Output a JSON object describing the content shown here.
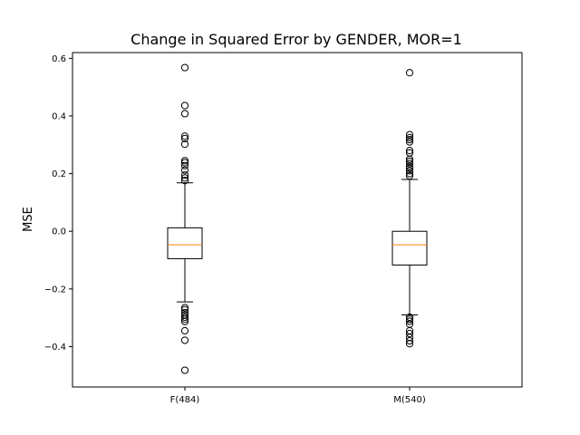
{
  "chart_data": {
    "type": "boxplot",
    "title": "Change in Squared Error by GENDER, MOR=1",
    "xlabel": "",
    "ylabel": "MSE",
    "ylim": [
      -0.54,
      0.62
    ],
    "yticks": [
      -0.4,
      -0.2,
      0.0,
      0.2,
      0.4,
      0.6
    ],
    "ytick_labels": [
      "−0.4",
      "−0.2",
      "0.0",
      "0.2",
      "0.4",
      "0.6"
    ],
    "grid": false,
    "colors": {
      "box": "#000000",
      "median": "#ff7f0e",
      "outlier": "#000000"
    },
    "categories": [
      "F(484)",
      "M(540)"
    ],
    "boxes": [
      {
        "label": "F(484)",
        "whisker_low": -0.245,
        "q1": -0.095,
        "median": -0.047,
        "q3": 0.012,
        "whisker_high": 0.168,
        "outliers": [
          0.568,
          0.436,
          0.408,
          0.33,
          0.322,
          0.302,
          0.245,
          0.238,
          0.228,
          0.212,
          0.195,
          0.185,
          0.176,
          -0.265,
          -0.272,
          -0.282,
          -0.29,
          -0.298,
          -0.305,
          -0.313,
          -0.345,
          -0.378,
          -0.482
        ]
      },
      {
        "label": "M(540)",
        "whisker_low": -0.29,
        "q1": -0.117,
        "median": -0.047,
        "q3": 0.0,
        "whisker_high": 0.18,
        "outliers": [
          0.55,
          0.335,
          0.325,
          0.318,
          0.31,
          0.28,
          0.272,
          0.25,
          0.243,
          0.235,
          0.225,
          0.218,
          0.21,
          0.2,
          0.192,
          -0.298,
          -0.305,
          -0.312,
          -0.322,
          -0.345,
          -0.355,
          -0.368,
          -0.38,
          -0.39
        ]
      }
    ]
  }
}
